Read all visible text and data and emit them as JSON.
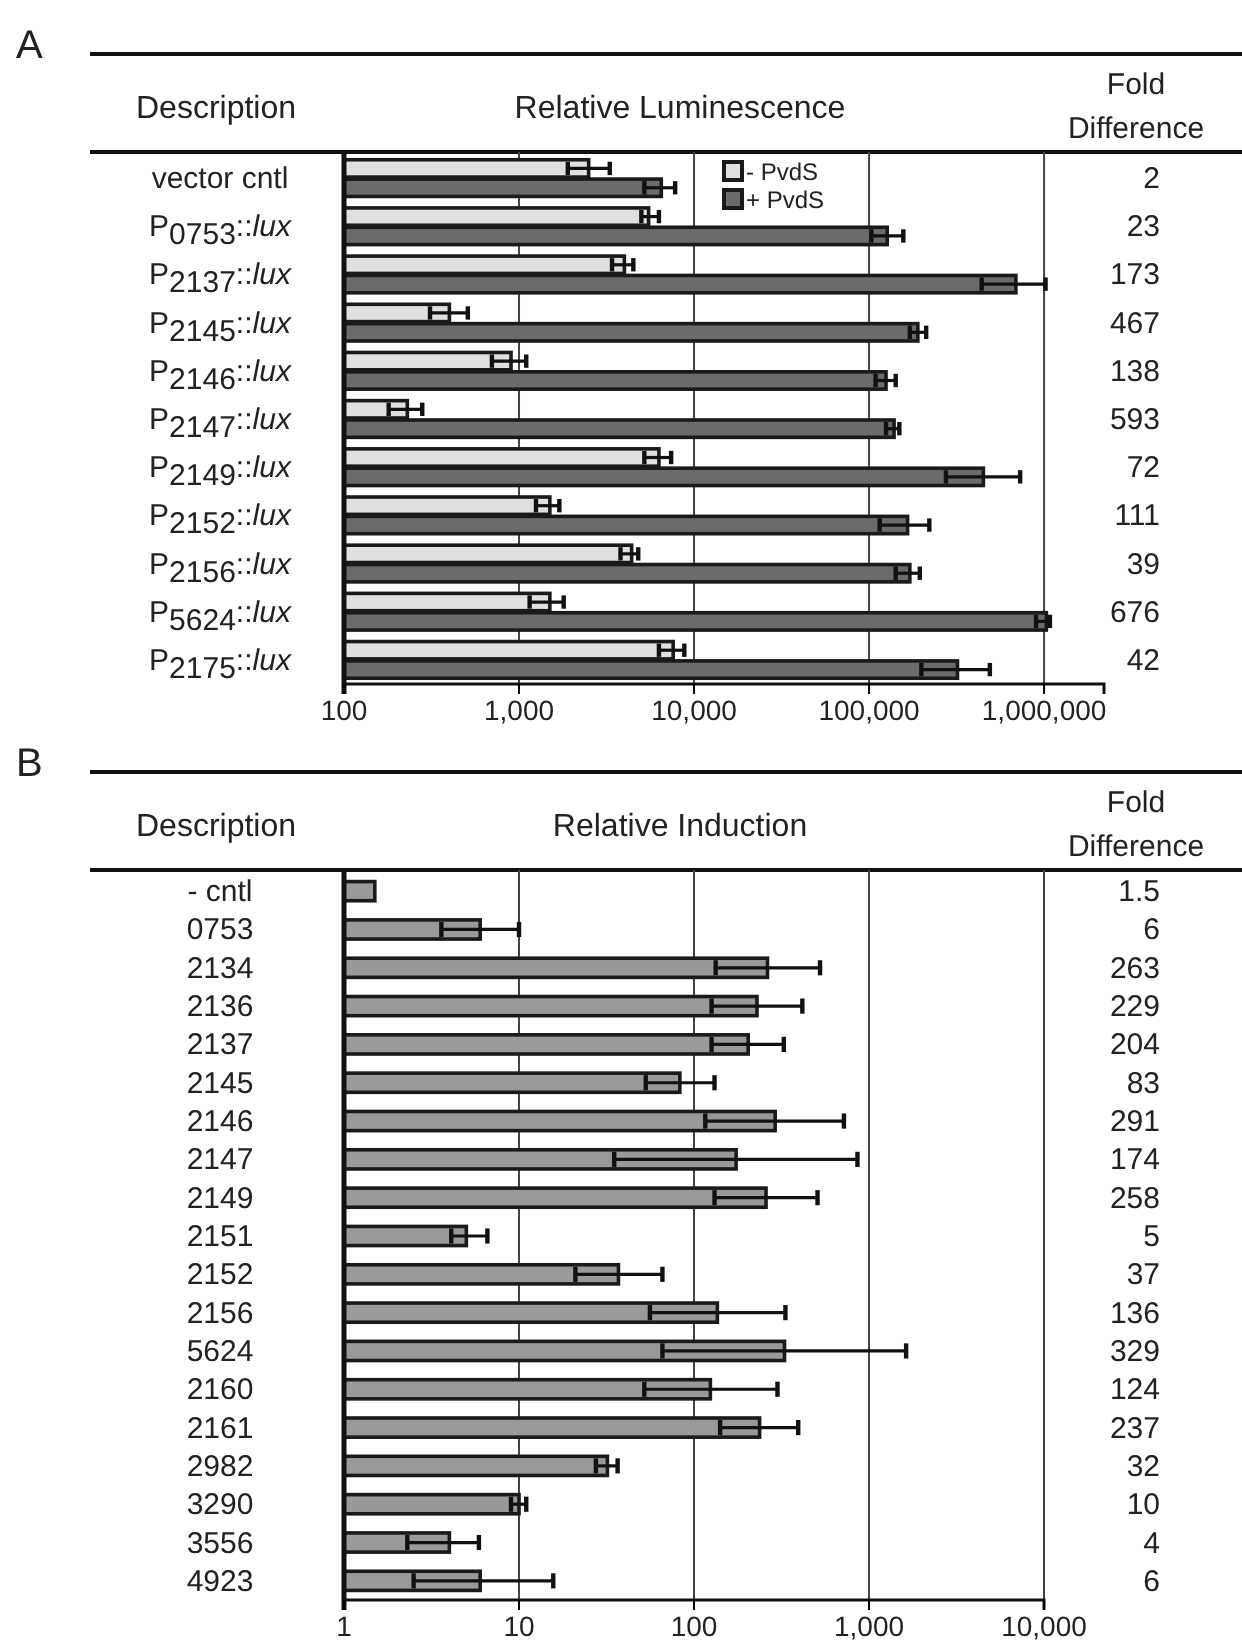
{
  "chart_data": [
    {
      "type": "bar",
      "orientation": "horizontal",
      "title": "A",
      "ylabel": "Description",
      "xlabel": "Relative Luminescence",
      "y2label": "Fold Difference",
      "categories": [
        "vector cntl",
        "P$_{0753}$::lux",
        "P$_{2137}$::lux",
        "P$_{2145}$::lux",
        "P$_{2146}$::lux",
        "P$_{2147}$::lux",
        "P$_{2149}$::lux",
        "P$_{2152}$::lux",
        "P$_{2156}$::lux",
        "P$_{5624}$::lux",
        "P$_{2175}$::lux"
      ],
      "series": [
        {
          "name": "- PvdS",
          "color": "#e0e0e0",
          "values": [
            2500,
            5500,
            4000,
            400,
            900,
            230,
            6300,
            1500,
            4400,
            1500,
            7600
          ],
          "errors": [
            [
              1900,
              3300
            ],
            [
              5000,
              6300
            ],
            [
              3400,
              4500
            ],
            [
              310,
              510
            ],
            [
              700,
              1100
            ],
            [
              180,
              280
            ],
            [
              5200,
              7400
            ],
            [
              1250,
              1700
            ],
            [
              3800,
              4800
            ],
            [
              1150,
              1800
            ],
            [
              6300,
              8800
            ]
          ]
        },
        {
          "name": "+ PvdS",
          "color": "#6b6b6b",
          "values": [
            6500,
            127000,
            690000,
            190000,
            125000,
            139000,
            450000,
            166000,
            171000,
            1030000,
            320000
          ],
          "errors": [
            [
              5200,
              7800
            ],
            [
              103000,
              157000
            ],
            [
              440000,
              1020000
            ],
            [
              171000,
              212000
            ],
            [
              109000,
              142000
            ],
            [
              125000,
              149000
            ],
            [
              275000,
              730000
            ],
            [
              115000,
              221000
            ],
            [
              142000,
              195000
            ],
            [
              900000,
              1080000
            ],
            [
              199000,
              490000
            ]
          ]
        }
      ],
      "annotations": [
        "2",
        "23",
        "173",
        "467",
        "138",
        "593",
        "72",
        "111",
        "39",
        "676",
        "42"
      ],
      "log": "x",
      "xlim": [
        100,
        2200000
      ],
      "xticks": [
        100,
        {
          "value": 1000,
          "label": "1,000"
        },
        {
          "value": 10000,
          "label": "10,000"
        },
        {
          "value": 100000,
          "label": "100,000"
        },
        {
          "value": 1000000,
          "label": "1,000,000"
        }
      ],
      "grid": "x",
      "legend": "top"
    },
    {
      "type": "bar",
      "orientation": "horizontal",
      "title": "B",
      "ylabel": "Description",
      "xlabel": "Relative Induction",
      "y2label": "Fold Difference",
      "categories": [
        "- cntl",
        "0753",
        "2134",
        "2136",
        "2137",
        "2145",
        "2146",
        "2147",
        "2149",
        "2151",
        "2152",
        "2156",
        "5624",
        "2160",
        "2161",
        "2982",
        "3290",
        "3556",
        "4923"
      ],
      "series": [
        {
          "color": "#999999",
          "values": [
            1.5,
            6,
            263,
            229,
            204,
            83,
            291,
            174,
            258,
            5,
            37,
            136,
            329,
            124,
            237,
            32,
            10,
            4,
            6
          ],
          "errors": [
            null,
            [
              3.6,
              10
            ],
            [
              133,
              525
            ],
            [
              126,
              416
            ],
            [
              126,
              326
            ],
            [
              53,
              131
            ],
            [
              116,
              719
            ],
            [
              35,
              859
            ],
            [
              131,
              508
            ],
            [
              4.1,
              6.6
            ],
            [
              21,
              66
            ],
            [
              56,
              333
            ],
            [
              66,
              1630
            ],
            [
              52,
              300
            ],
            [
              141,
              394
            ],
            [
              27.5,
              36.6
            ],
            [
              9,
              11
            ],
            [
              2.3,
              5.9
            ],
            [
              2.5,
              15.7
            ]
          ]
        }
      ],
      "data_labels": true,
      "log": "x",
      "xlim": [
        1,
        10000
      ],
      "xticks": [
        1,
        10,
        100,
        {
          "value": 1000,
          "label": "1,000"
        },
        {
          "value": 10000,
          "label": "10,000"
        }
      ],
      "grid": "x",
      "legend": false
    }
  ]
}
